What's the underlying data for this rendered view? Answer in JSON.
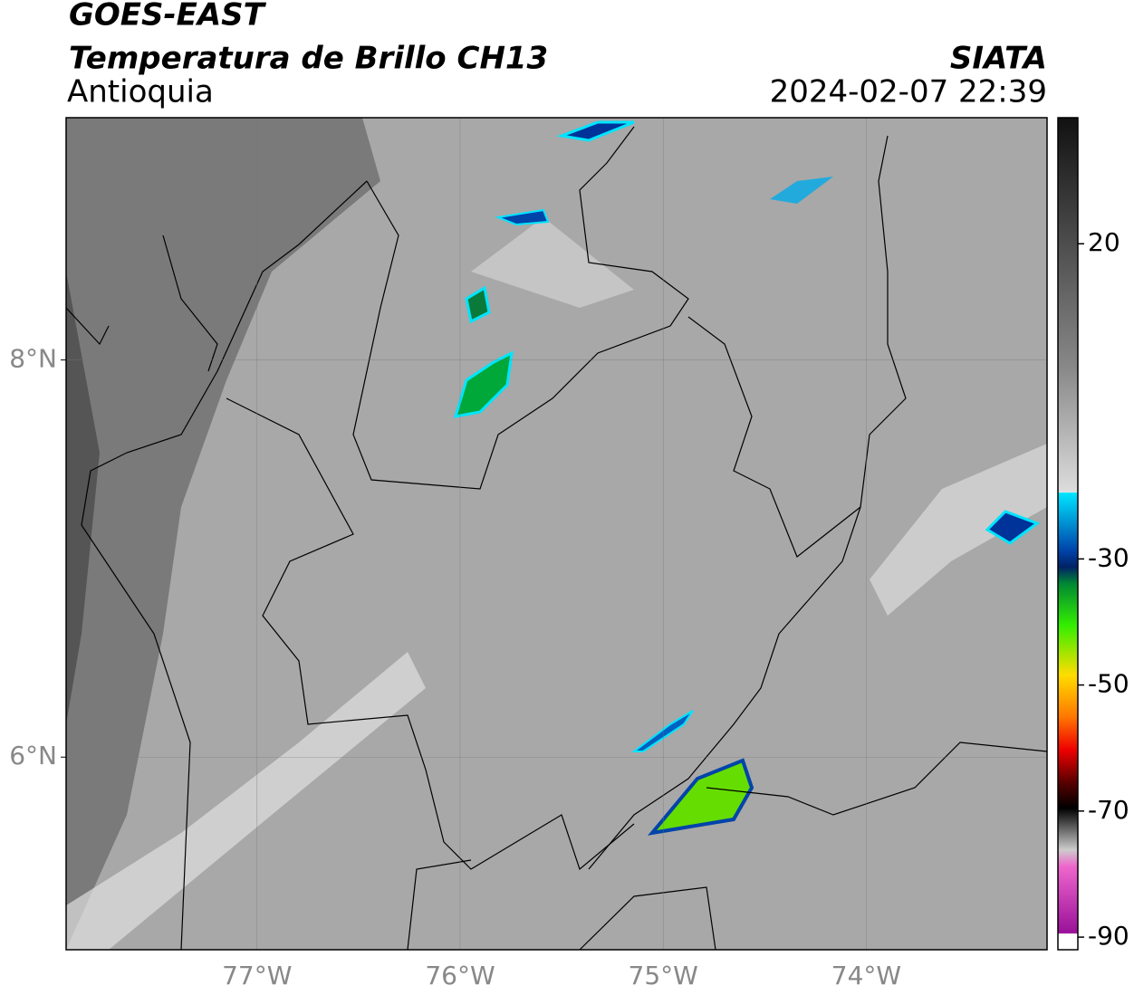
{
  "header": {
    "title": "GOES-EAST",
    "subtitle": "Temperatura de Brillo CH13",
    "region": "Antioquia",
    "source": "SIATA",
    "datetime": "2024-02-07 22:39"
  },
  "map": {
    "xlim": [
      -77.94,
      -73.11
    ],
    "ylim": [
      5.03,
      9.22
    ],
    "xticks": [
      {
        "value": -77,
        "label": "77°W"
      },
      {
        "value": -76,
        "label": "76°W"
      },
      {
        "value": -75,
        "label": "75°W"
      },
      {
        "value": -74,
        "label": "74°W"
      }
    ],
    "yticks": [
      {
        "value": 6,
        "label": "6°N"
      },
      {
        "value": 8,
        "label": "8°N"
      }
    ],
    "grid": true
  },
  "colorbar": {
    "clim": [
      -92,
      40
    ],
    "ticks": [
      20,
      -30,
      -50,
      -70,
      -90
    ]
  }
}
